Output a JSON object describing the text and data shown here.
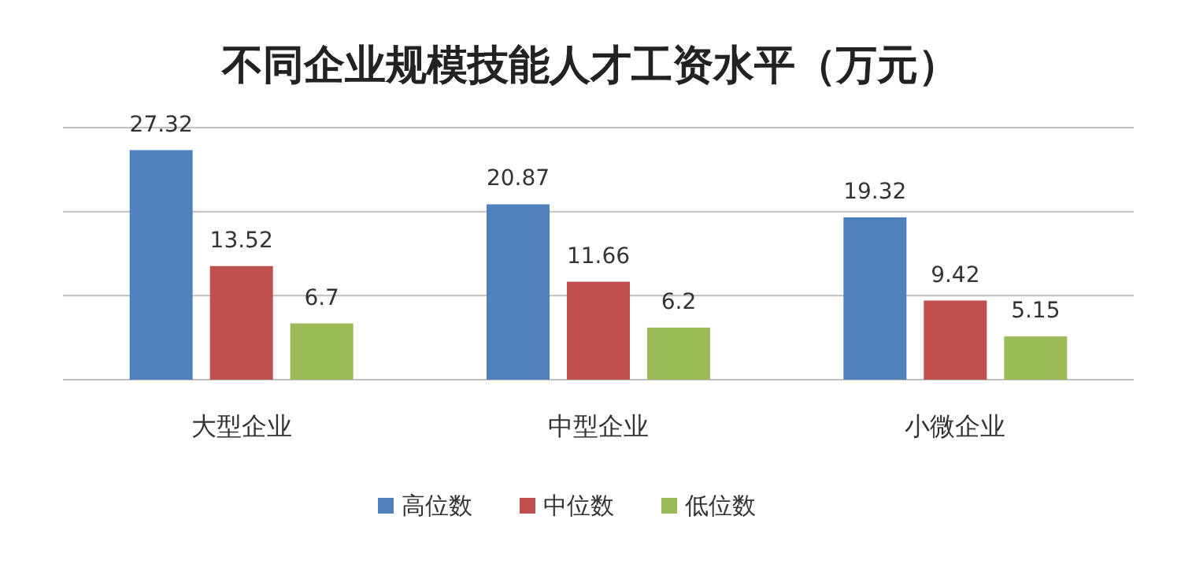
{
  "chart_data": {
    "type": "bar",
    "title": "不同企业规模技能人才工资水平（万元）",
    "categories": [
      "大型企业",
      "中型企业",
      "小微企业"
    ],
    "series": [
      {
        "name": "高位数",
        "color": "#4f81bd",
        "values": [
          27.32,
          20.87,
          19.32
        ]
      },
      {
        "name": "中位数",
        "color": "#c0504d",
        "values": [
          13.52,
          11.66,
          9.42
        ]
      },
      {
        "name": "低位数",
        "color": "#9bbb59",
        "values": [
          6.7,
          6.2,
          5.15
        ]
      }
    ],
    "data_labels": true,
    "ylim": [
      0,
      30
    ],
    "yticks": [
      {
        "value": 0,
        "label": null
      },
      {
        "value": 10,
        "label": null
      },
      {
        "value": 20,
        "label": null
      },
      {
        "value": 30,
        "label": null
      }
    ],
    "tick_labels": "x",
    "grid": "y",
    "legend": "bottom"
  }
}
